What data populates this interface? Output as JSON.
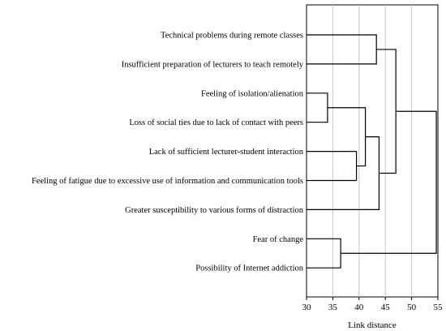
{
  "chart_data": {
    "type": "dendrogram",
    "orientation": "horizontal",
    "xlabel": "Link distance",
    "xlim": [
      30,
      55
    ],
    "xticks": [
      30,
      35,
      40,
      45,
      50,
      55
    ],
    "grid": "vertical",
    "leaves": [
      "Technical problems during remote classes",
      "Insufficient preparation of lecturers to teach remotely",
      "Feeling of isolation/alienation",
      "Loss of social ties due to lack of contact with peers",
      "Lack of sufficient lecturer-student interaction",
      "Feeling of fatigue due to excessive use of information and communication tools",
      "Greater susceptibility to various forms of distraction",
      "Fear of change",
      "Possibility of Internet addiction"
    ],
    "merges": [
      {
        "left": "L2",
        "right": "L3",
        "height": 34.0
      },
      {
        "left": "L4",
        "right": "L5",
        "height": 39.5
      },
      {
        "left": "M0",
        "right": "M1",
        "height": 41.2
      },
      {
        "left": "L0",
        "right": "L1",
        "height": 43.3
      },
      {
        "left": "M2",
        "right": "L6",
        "height": 43.8
      },
      {
        "left": "L7",
        "right": "L8",
        "height": 36.5
      },
      {
        "left": "M3",
        "right": "M4",
        "height": 47.0
      },
      {
        "left": "M6",
        "right": "M5",
        "height": 54.7
      }
    ]
  }
}
